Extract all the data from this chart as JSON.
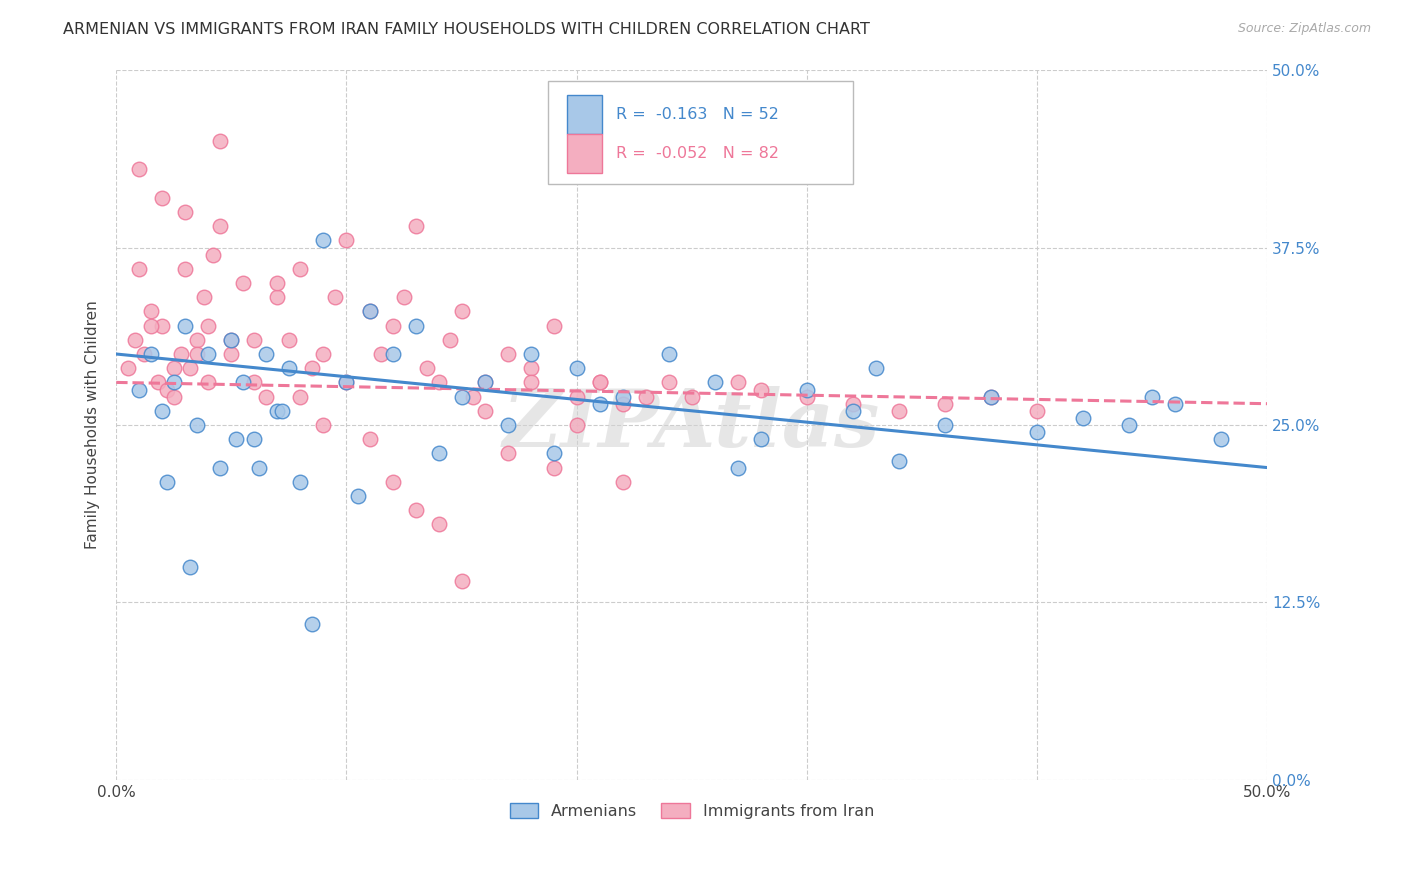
{
  "title": "ARMENIAN VS IMMIGRANTS FROM IRAN FAMILY HOUSEHOLDS WITH CHILDREN CORRELATION CHART",
  "source": "Source: ZipAtlas.com",
  "ylabel": "Family Households with Children",
  "ytick_values": [
    0,
    12.5,
    25.0,
    37.5,
    50.0
  ],
  "xlim": [
    0,
    50
  ],
  "ylim": [
    0,
    50
  ],
  "color_armenian": "#a8c8e8",
  "color_iran": "#f4aec0",
  "color_armenian_line": "#4488cc",
  "color_iran_line": "#ee7799",
  "watermark": "ZIPAtlas",
  "armenian_x": [
    1.0,
    1.5,
    2.0,
    2.5,
    3.0,
    3.5,
    4.0,
    4.5,
    5.0,
    5.5,
    6.0,
    6.5,
    7.0,
    7.5,
    8.0,
    9.0,
    10.0,
    11.0,
    12.0,
    13.0,
    15.0,
    16.0,
    17.0,
    18.0,
    20.0,
    21.0,
    22.0,
    24.0,
    26.0,
    28.0,
    30.0,
    32.0,
    34.0,
    36.0,
    38.0,
    40.0,
    42.0,
    44.0,
    46.0,
    48.0,
    2.2,
    3.2,
    5.2,
    6.2,
    7.2,
    8.5,
    10.5,
    14.0,
    19.0,
    27.0,
    33.0,
    45.0
  ],
  "armenian_y": [
    27.5,
    30.0,
    26.0,
    28.0,
    32.0,
    25.0,
    30.0,
    22.0,
    31.0,
    28.0,
    24.0,
    30.0,
    26.0,
    29.0,
    21.0,
    38.0,
    28.0,
    33.0,
    30.0,
    32.0,
    27.0,
    28.0,
    25.0,
    30.0,
    29.0,
    26.5,
    27.0,
    30.0,
    28.0,
    24.0,
    27.5,
    26.0,
    22.5,
    25.0,
    27.0,
    24.5,
    25.5,
    25.0,
    26.5,
    24.0,
    21.0,
    15.0,
    24.0,
    22.0,
    26.0,
    11.0,
    20.0,
    23.0,
    23.0,
    22.0,
    29.0,
    27.0
  ],
  "iran_x": [
    0.5,
    0.8,
    1.0,
    1.2,
    1.5,
    1.8,
    2.0,
    2.2,
    2.5,
    2.8,
    3.0,
    3.2,
    3.5,
    3.8,
    4.0,
    4.2,
    4.5,
    5.0,
    5.5,
    6.0,
    6.5,
    7.0,
    7.5,
    8.0,
    8.5,
    9.0,
    9.5,
    10.0,
    11.0,
    11.5,
    12.0,
    12.5,
    13.0,
    13.5,
    14.0,
    14.5,
    15.0,
    15.5,
    16.0,
    17.0,
    18.0,
    19.0,
    20.0,
    21.0,
    22.0,
    1.0,
    2.0,
    3.0,
    4.0,
    5.0,
    1.5,
    2.5,
    3.5,
    4.5,
    6.0,
    7.0,
    8.0,
    9.0,
    10.0,
    11.0,
    12.0,
    13.0,
    14.0,
    15.0,
    16.0,
    17.0,
    18.0,
    19.0,
    20.0,
    21.0,
    22.0,
    23.0,
    24.0,
    25.0,
    27.0,
    28.0,
    30.0,
    32.0,
    34.0,
    36.0,
    38.0,
    40.0
  ],
  "iran_y": [
    29.0,
    31.0,
    36.0,
    30.0,
    33.0,
    28.0,
    32.0,
    27.5,
    27.0,
    30.0,
    36.0,
    29.0,
    31.0,
    34.0,
    28.0,
    37.0,
    45.0,
    30.0,
    35.0,
    28.0,
    27.0,
    34.0,
    31.0,
    36.0,
    29.0,
    30.0,
    34.0,
    38.0,
    33.0,
    30.0,
    32.0,
    34.0,
    39.0,
    29.0,
    28.0,
    31.0,
    33.0,
    27.0,
    28.0,
    30.0,
    29.0,
    32.0,
    27.0,
    28.0,
    26.5,
    43.0,
    41.0,
    40.0,
    32.0,
    31.0,
    32.0,
    29.0,
    30.0,
    39.0,
    31.0,
    35.0,
    27.0,
    25.0,
    28.0,
    24.0,
    21.0,
    19.0,
    18.0,
    14.0,
    26.0,
    23.0,
    28.0,
    22.0,
    25.0,
    28.0,
    21.0,
    27.0,
    28.0,
    27.0,
    28.0,
    27.5,
    27.0,
    26.5,
    26.0,
    26.5,
    27.0,
    26.0
  ]
}
